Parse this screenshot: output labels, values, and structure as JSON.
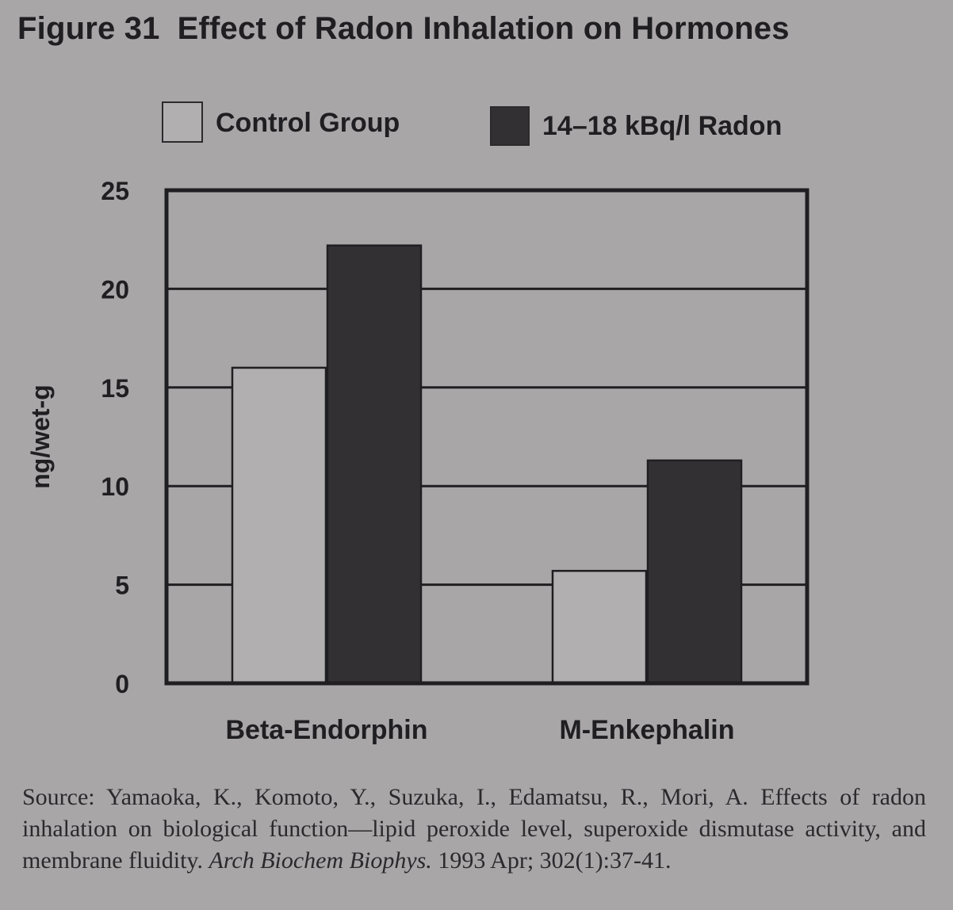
{
  "figure": {
    "number": "Figure 31",
    "title": "Effect of Radon Inhalation on Hormones"
  },
  "colors": {
    "background": "#a9a6a8",
    "control_fill": "#b2afb1",
    "radon_fill": "#333034",
    "frame": "#1f1e20"
  },
  "chart_data": {
    "type": "bar",
    "title": "Effect of Radon Inhalation on Hormones",
    "ylabel": "ng/wet-g",
    "xlabel": "",
    "ylim": [
      0,
      25
    ],
    "yticks": [
      0,
      5,
      10,
      15,
      20,
      25
    ],
    "categories": [
      "Beta-Endorphin",
      "M-Enkephalin"
    ],
    "series": [
      {
        "name": "Control Group",
        "values": [
          16.0,
          5.7
        ]
      },
      {
        "name": "14–18 kBq/l Radon",
        "values": [
          22.2,
          11.3
        ]
      }
    ],
    "legend_position": "top",
    "grid": true
  },
  "source": {
    "label": "Source:",
    "text_before": "Yamaoka, K., Komoto, Y., Suzuka, I., Edamatsu, R., Mori, A. Effects of radon inhalation on biological function—lipid peroxide level, superoxide dismutase activity, and membrane fluidity.",
    "journal": "Arch Biochem Biophys.",
    "text_after": "1993 Apr; 302(1):37-41."
  }
}
